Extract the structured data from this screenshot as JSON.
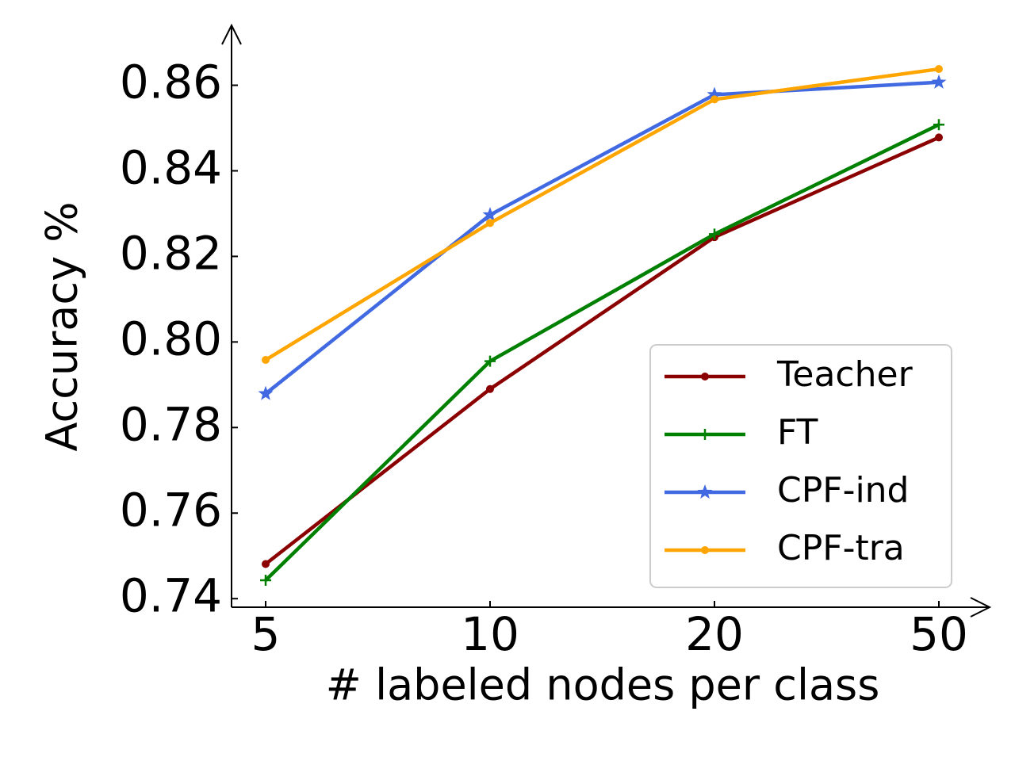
{
  "chart_data": {
    "type": "line",
    "x_label": "# labeled nodes per class",
    "y_label": "Accuracy %",
    "categories": [
      "5",
      "10",
      "20",
      "50"
    ],
    "series": [
      {
        "name": "Teacher",
        "color": "#8b0000",
        "marker": "dot",
        "values": [
          0.7481,
          0.789,
          0.8245,
          0.8478
        ]
      },
      {
        "name": "FT",
        "color": "#008000",
        "marker": "plus",
        "values": [
          0.7443,
          0.7955,
          0.8252,
          0.8508
        ]
      },
      {
        "name": "CPF-ind",
        "color": "#4169e1",
        "marker": "star",
        "values": [
          0.7879,
          0.8297,
          0.8578,
          0.8607
        ]
      },
      {
        "name": "CPF-tra",
        "color": "#ffa500",
        "marker": "dot",
        "values": [
          0.7958,
          0.8278,
          0.8567,
          0.8638
        ]
      }
    ],
    "ylim": [
      0.738,
      0.874
    ],
    "yticks": [
      0.74,
      0.76,
      0.78,
      {
        "value": 0.8,
        "label": "0.80"
      },
      0.82,
      0.84,
      0.86
    ],
    "legend": "lower right",
    "grid": false
  }
}
